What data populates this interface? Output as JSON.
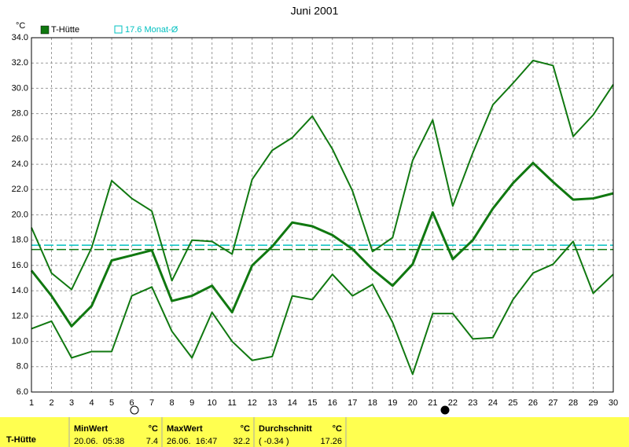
{
  "chart_data": {
    "type": "line",
    "title": "Juni 2001",
    "y_unit": "°C",
    "x": [
      1,
      2,
      3,
      4,
      5,
      6,
      7,
      8,
      9,
      10,
      11,
      12,
      13,
      14,
      15,
      16,
      17,
      18,
      19,
      20,
      21,
      22,
      23,
      24,
      25,
      26,
      27,
      28,
      29,
      30
    ],
    "xlim": [
      1,
      30
    ],
    "xticks": [
      1,
      2,
      3,
      4,
      5,
      6,
      7,
      8,
      9,
      10,
      11,
      12,
      13,
      14,
      15,
      16,
      17,
      18,
      19,
      20,
      21,
      22,
      23,
      24,
      25,
      26,
      27,
      28,
      29,
      30
    ],
    "ylim": [
      6,
      34
    ],
    "yticks": [
      {
        "value": 6,
        "label": "6.0"
      },
      {
        "value": 8,
        "label": "8.0"
      },
      {
        "value": 10,
        "label": "10.0"
      },
      {
        "value": 12,
        "label": "12.0"
      },
      {
        "value": 14,
        "label": "14.0"
      },
      {
        "value": 16,
        "label": "16.0"
      },
      {
        "value": 18,
        "label": "18.0"
      },
      {
        "value": 20,
        "label": "20.0"
      },
      {
        "value": 22,
        "label": "22.0"
      },
      {
        "value": 24,
        "label": "24.0"
      },
      {
        "value": 26,
        "label": "26.0"
      },
      {
        "value": 28,
        "label": "28.0"
      },
      {
        "value": 30,
        "label": "30.0"
      },
      {
        "value": 32,
        "label": "32.0"
      },
      {
        "value": 34,
        "label": "34.0"
      }
    ],
    "grid": true,
    "series": [
      {
        "name": "T-Hütte",
        "color": "#107810",
        "values": [
          15.6,
          13.6,
          11.2,
          12.8,
          16.4,
          16.8,
          17.2,
          13.2,
          13.6,
          14.4,
          12.3,
          16.0,
          17.5,
          19.4,
          19.1,
          18.4,
          17.3,
          15.7,
          14.4,
          16.1,
          20.2,
          16.5,
          18.0,
          20.5,
          22.5,
          24.1,
          22.6,
          21.2,
          21.3,
          21.7
        ]
      },
      {
        "color": "#107810",
        "values": [
          19.0,
          15.4,
          14.1,
          17.4,
          22.7,
          21.3,
          20.3,
          14.8,
          18.0,
          17.9,
          16.9,
          22.8,
          25.1,
          26.1,
          27.8,
          25.2,
          21.9,
          17.1,
          18.2,
          24.3,
          27.5,
          20.7,
          24.9,
          28.7,
          30.4,
          32.2,
          31.8,
          26.2,
          27.9,
          30.3
        ]
      },
      {
        "color": "#107810",
        "values": [
          11.0,
          11.6,
          8.7,
          9.2,
          9.2,
          13.6,
          14.3,
          10.8,
          8.7,
          12.3,
          10.0,
          8.5,
          8.8,
          13.6,
          13.3,
          15.3,
          13.6,
          14.5,
          11.5,
          7.4,
          12.2,
          12.2,
          10.2,
          10.3,
          13.3,
          15.4,
          16.1,
          17.9,
          13.8,
          15.3
        ]
      }
    ],
    "reference_lines": [
      {
        "label": "17.6 Monat-Ø",
        "value": 17.6,
        "color": "#00c0c0"
      },
      {
        "value": 17.26,
        "color": "#107810"
      }
    ]
  },
  "summary": {
    "station": "T-Hütte",
    "columns": [
      {
        "label": "MinWert",
        "unit": "°C",
        "time": "20.06.  05:38",
        "value": "7.4"
      },
      {
        "label": "MaxWert",
        "unit": "°C",
        "time": "26.06.  16:47",
        "value": "32.2"
      },
      {
        "label": "Durchschnitt",
        "unit": "°C",
        "time": "( -0.34 )",
        "value": "17.26"
      }
    ]
  }
}
